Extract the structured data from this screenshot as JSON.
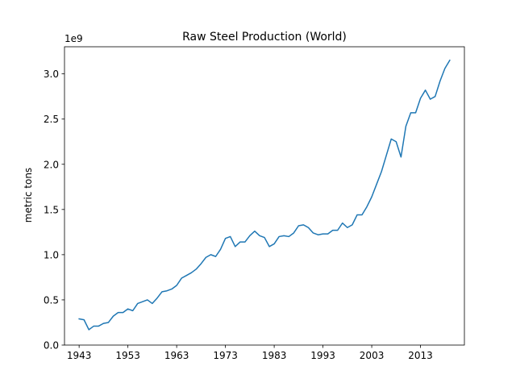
{
  "chart_data": {
    "type": "line",
    "title": "Raw Steel Production (World)",
    "xlabel": "",
    "ylabel": "metric tons",
    "offset_text": "1e9",
    "xlim": [
      1940,
      2022
    ],
    "ylim": [
      0,
      3.3
    ],
    "x_ticks": [
      1943,
      1953,
      1963,
      1973,
      1983,
      1993,
      2003,
      2013
    ],
    "y_ticks": [
      0.0,
      0.5,
      1.0,
      1.5,
      2.0,
      2.5,
      3.0
    ],
    "y_tick_labels": [
      "0.0",
      "0.5",
      "1.0",
      "1.5",
      "2.0",
      "2.5",
      "3.0"
    ],
    "grid": false,
    "legend": "none",
    "line_color": "#1f77b4",
    "y_unit_multiplier": 1000000000,
    "series": [
      {
        "x": [
          1943,
          1944,
          1945,
          1946,
          1947,
          1948,
          1949,
          1950,
          1951,
          1952,
          1953,
          1954,
          1955,
          1956,
          1957,
          1958,
          1959,
          1960,
          1961,
          1962,
          1963,
          1964,
          1965,
          1966,
          1967,
          1968,
          1969,
          1970,
          1971,
          1972,
          1973,
          1974,
          1975,
          1976,
          1977,
          1978,
          1979,
          1980,
          1981,
          1982,
          1983,
          1984,
          1985,
          1986,
          1987,
          1988,
          1989,
          1990,
          1991,
          1992,
          1993,
          1994,
          1995,
          1996,
          1997,
          1998,
          1999,
          2000,
          2001,
          2002,
          2003,
          2004,
          2005,
          2006,
          2007,
          2008,
          2009,
          2010,
          2011,
          2012,
          2013,
          2014,
          2015,
          2016,
          2017,
          2018,
          2019
        ],
        "y": [
          0.29,
          0.28,
          0.17,
          0.21,
          0.21,
          0.24,
          0.25,
          0.32,
          0.36,
          0.36,
          0.4,
          0.38,
          0.46,
          0.48,
          0.5,
          0.46,
          0.52,
          0.59,
          0.6,
          0.62,
          0.66,
          0.74,
          0.77,
          0.8,
          0.84,
          0.9,
          0.97,
          1.0,
          0.98,
          1.06,
          1.18,
          1.2,
          1.09,
          1.14,
          1.14,
          1.21,
          1.26,
          1.21,
          1.19,
          1.09,
          1.12,
          1.2,
          1.21,
          1.2,
          1.24,
          1.32,
          1.33,
          1.3,
          1.24,
          1.22,
          1.23,
          1.23,
          1.27,
          1.27,
          1.35,
          1.3,
          1.33,
          1.44,
          1.44,
          1.53,
          1.64,
          1.78,
          1.92,
          2.1,
          2.28,
          2.25,
          2.08,
          2.42,
          2.57,
          2.57,
          2.73,
          2.82,
          2.72,
          2.75,
          2.92,
          3.06,
          3.15
        ]
      }
    ]
  }
}
